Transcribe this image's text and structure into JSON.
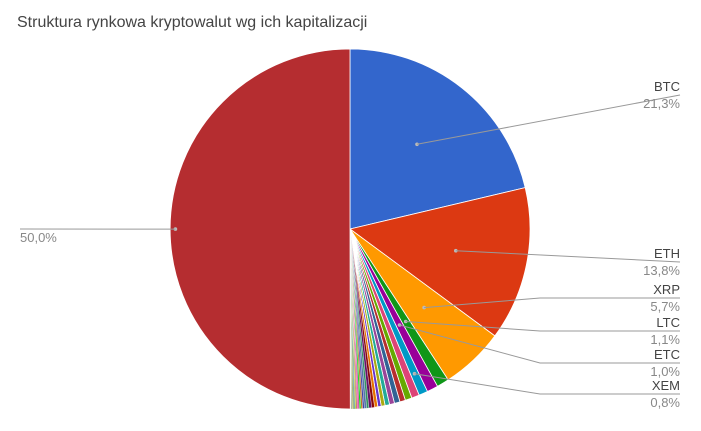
{
  "chart_data": {
    "type": "pie",
    "title": "Struktura rynkowa kryptowalut wg ich kapitalizacji",
    "slices": [
      {
        "label": "BTC",
        "value": 21.3,
        "value_label": "21,3%",
        "color": "#3366cc"
      },
      {
        "label": "ETH",
        "value": 13.8,
        "value_label": "13,8%",
        "color": "#dc3912"
      },
      {
        "label": "XRP",
        "value": 5.7,
        "value_label": "5,7%",
        "color": "#ff9900"
      },
      {
        "label": "LTC",
        "value": 1.1,
        "value_label": "1,1%",
        "color": "#109618"
      },
      {
        "label": "ETC",
        "value": 1.0,
        "value_label": "1,0%",
        "color": "#990099"
      },
      {
        "label": "XEM",
        "value": 0.8,
        "value_label": "0,8%",
        "color": "#0099c6"
      },
      {
        "label": "",
        "value": 0.7,
        "value_label": "",
        "color": "#dd4477"
      },
      {
        "label": "",
        "value": 0.6,
        "value_label": "",
        "color": "#66aa00"
      },
      {
        "label": "",
        "value": 0.5,
        "value_label": "",
        "color": "#b82e2e"
      },
      {
        "label": "",
        "value": 0.5,
        "value_label": "",
        "color": "#316395"
      },
      {
        "label": "",
        "value": 0.45,
        "value_label": "",
        "color": "#994499"
      },
      {
        "label": "",
        "value": 0.4,
        "value_label": "",
        "color": "#22aa99"
      },
      {
        "label": "",
        "value": 0.35,
        "value_label": "",
        "color": "#aaaa11"
      },
      {
        "label": "",
        "value": 0.3,
        "value_label": "",
        "color": "#6633cc"
      },
      {
        "label": "",
        "value": 0.3,
        "value_label": "",
        "color": "#e67300"
      },
      {
        "label": "",
        "value": 0.25,
        "value_label": "",
        "color": "#8b0707"
      },
      {
        "label": "",
        "value": 0.25,
        "value_label": "",
        "color": "#651067"
      },
      {
        "label": "",
        "value": 0.2,
        "value_label": "",
        "color": "#329262"
      },
      {
        "label": "",
        "value": 0.2,
        "value_label": "",
        "color": "#5574a6"
      },
      {
        "label": "",
        "value": 0.15,
        "value_label": "",
        "color": "#3b3eac"
      },
      {
        "label": "",
        "value": 0.15,
        "value_label": "",
        "color": "#b77322"
      },
      {
        "label": "",
        "value": 0.15,
        "value_label": "",
        "color": "#16d620"
      },
      {
        "label": "",
        "value": 0.1,
        "value_label": "",
        "color": "#b91383"
      },
      {
        "label": "",
        "value": 0.1,
        "value_label": "",
        "color": "#f4359e"
      },
      {
        "label": "",
        "value": 0.1,
        "value_label": "",
        "color": "#9c5935"
      },
      {
        "label": "",
        "value": 0.1,
        "value_label": "",
        "color": "#a9c413"
      },
      {
        "label": "",
        "value": 0.1,
        "value_label": "",
        "color": "#2a778d"
      },
      {
        "label": "",
        "value": 0.1,
        "value_label": "",
        "color": "#668d1c"
      },
      {
        "label": "",
        "value": 0.05,
        "value_label": "",
        "color": "#bea413"
      },
      {
        "label": "",
        "value": 0.05,
        "value_label": "",
        "color": "#0c5922"
      },
      {
        "label": "",
        "value": 0.05,
        "value_label": "",
        "color": "#743411"
      },
      {
        "label": "",
        "value": 0.05,
        "value_label": "",
        "color": "#aaaaaa"
      },
      {
        "label": "",
        "value": 50.0,
        "value_label": "50,0%",
        "color": "#b52d30"
      }
    ]
  }
}
